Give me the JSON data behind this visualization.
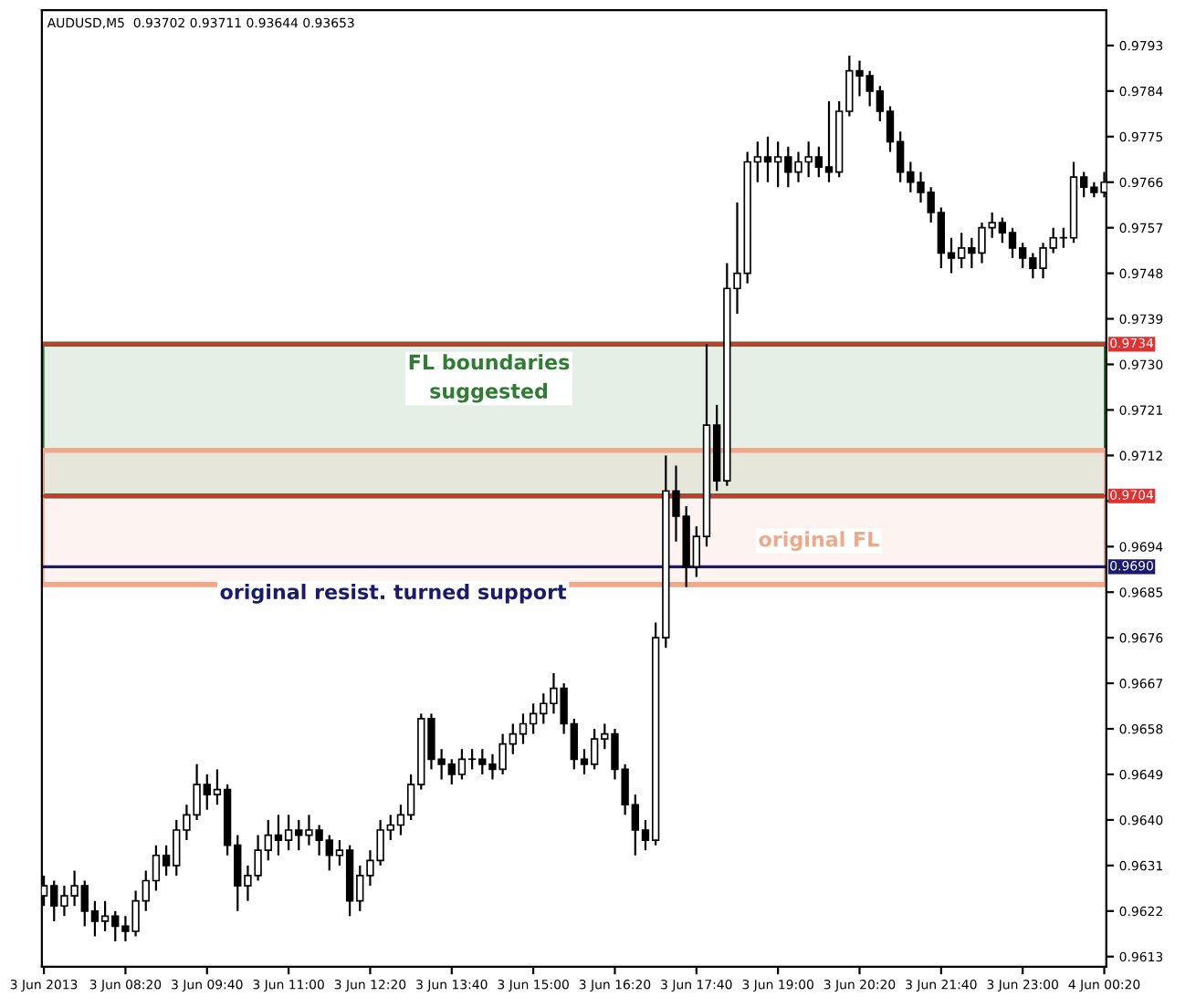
{
  "chart_data": {
    "type": "candlestick",
    "title": "AUDUSD,M5  0.93702 0.93711 0.93644 0.93653",
    "x": [
      "2013-06-03T07:00",
      "2013-06-03T07:10",
      "2013-06-03T07:20",
      "2013-06-03T07:30",
      "2013-06-03T07:40",
      "2013-06-03T07:50",
      "2013-06-03T08:00",
      "2013-06-03T08:10",
      "2013-06-03T08:20",
      "2013-06-03T08:30",
      "2013-06-03T08:40",
      "2013-06-03T08:50",
      "2013-06-03T09:00",
      "2013-06-03T09:10",
      "2013-06-03T09:20",
      "2013-06-03T09:30",
      "2013-06-03T09:40",
      "2013-06-03T09:50",
      "2013-06-03T10:00",
      "2013-06-03T10:10",
      "2013-06-03T10:20",
      "2013-06-03T10:30",
      "2013-06-03T10:40",
      "2013-06-03T10:50",
      "2013-06-03T11:00",
      "2013-06-03T11:10",
      "2013-06-03T11:20",
      "2013-06-03T11:30",
      "2013-06-03T11:40",
      "2013-06-03T11:50",
      "2013-06-03T12:00",
      "2013-06-03T12:10",
      "2013-06-03T12:20",
      "2013-06-03T12:30",
      "2013-06-03T12:40",
      "2013-06-03T12:50",
      "2013-06-03T13:00",
      "2013-06-03T13:10",
      "2013-06-03T13:20",
      "2013-06-03T13:30",
      "2013-06-03T13:40",
      "2013-06-03T13:50",
      "2013-06-03T14:00",
      "2013-06-03T14:10",
      "2013-06-03T14:20",
      "2013-06-03T14:30",
      "2013-06-03T14:40",
      "2013-06-03T14:50",
      "2013-06-03T15:00",
      "2013-06-03T15:10",
      "2013-06-03T15:20",
      "2013-06-03T15:30",
      "2013-06-03T15:40",
      "2013-06-03T15:50",
      "2013-06-03T16:00",
      "2013-06-03T16:10",
      "2013-06-03T16:20",
      "2013-06-03T16:30",
      "2013-06-03T16:40",
      "2013-06-03T16:50",
      "2013-06-03T17:00",
      "2013-06-03T17:10",
      "2013-06-03T17:20",
      "2013-06-03T17:30",
      "2013-06-03T17:40",
      "2013-06-03T17:50",
      "2013-06-03T18:00",
      "2013-06-03T18:10",
      "2013-06-03T18:20",
      "2013-06-03T18:30",
      "2013-06-03T18:40",
      "2013-06-03T18:50",
      "2013-06-03T19:00",
      "2013-06-03T19:10",
      "2013-06-03T19:20",
      "2013-06-03T19:30",
      "2013-06-03T19:40",
      "2013-06-03T19:50",
      "2013-06-03T20:00",
      "2013-06-03T20:10",
      "2013-06-03T20:20",
      "2013-06-03T20:30",
      "2013-06-03T20:40",
      "2013-06-03T20:50",
      "2013-06-03T21:00",
      "2013-06-03T21:10",
      "2013-06-03T21:20",
      "2013-06-03T21:30",
      "2013-06-03T21:40",
      "2013-06-03T21:50",
      "2013-06-03T22:00",
      "2013-06-03T22:10",
      "2013-06-03T22:20",
      "2013-06-03T22:30",
      "2013-06-03T22:40",
      "2013-06-03T22:50",
      "2013-06-03T23:00",
      "2013-06-03T23:10",
      "2013-06-03T23:20",
      "2013-06-03T23:30",
      "2013-06-03T23:40",
      "2013-06-03T23:50",
      "2013-06-04T00:00",
      "2013-06-04T00:10",
      "2013-06-04T00:20"
    ],
    "ohlc": [
      [
        0.9625,
        0.9629,
        0.9623,
        0.9627
      ],
      [
        0.9627,
        0.9628,
        0.962,
        0.9623
      ],
      [
        0.9623,
        0.9627,
        0.9621,
        0.9625
      ],
      [
        0.9625,
        0.963,
        0.9623,
        0.9627
      ],
      [
        0.9627,
        0.9628,
        0.9619,
        0.9622
      ],
      [
        0.9622,
        0.9624,
        0.9617,
        0.962
      ],
      [
        0.962,
        0.9624,
        0.9618,
        0.9621
      ],
      [
        0.9621,
        0.9622,
        0.9616,
        0.9619
      ],
      [
        0.9619,
        0.9621,
        0.9616,
        0.9618
      ],
      [
        0.9618,
        0.9626,
        0.9617,
        0.9624
      ],
      [
        0.9624,
        0.963,
        0.9622,
        0.9628
      ],
      [
        0.9628,
        0.9635,
        0.9626,
        0.9633
      ],
      [
        0.9633,
        0.9635,
        0.9629,
        0.9631
      ],
      [
        0.9631,
        0.964,
        0.9629,
        0.9638
      ],
      [
        0.9638,
        0.9643,
        0.9636,
        0.9641
      ],
      [
        0.9641,
        0.9651,
        0.964,
        0.9647
      ],
      [
        0.9647,
        0.9649,
        0.9642,
        0.9645
      ],
      [
        0.9645,
        0.965,
        0.9643,
        0.9646
      ],
      [
        0.9646,
        0.9647,
        0.9633,
        0.9635
      ],
      [
        0.9635,
        0.9637,
        0.9622,
        0.9627
      ],
      [
        0.9627,
        0.9631,
        0.9624,
        0.9629
      ],
      [
        0.9629,
        0.9637,
        0.9628,
        0.9634
      ],
      [
        0.9634,
        0.964,
        0.9632,
        0.9637
      ],
      [
        0.9637,
        0.9641,
        0.9633,
        0.9636
      ],
      [
        0.9636,
        0.9641,
        0.9634,
        0.9638
      ],
      [
        0.9638,
        0.964,
        0.9634,
        0.9637
      ],
      [
        0.9637,
        0.9641,
        0.9635,
        0.9638
      ],
      [
        0.9638,
        0.9639,
        0.9633,
        0.9636
      ],
      [
        0.9636,
        0.9637,
        0.963,
        0.9633
      ],
      [
        0.9633,
        0.9636,
        0.9631,
        0.9634
      ],
      [
        0.9634,
        0.9635,
        0.9621,
        0.9624
      ],
      [
        0.9624,
        0.9631,
        0.9622,
        0.9629
      ],
      [
        0.9629,
        0.9634,
        0.9627,
        0.9632
      ],
      [
        0.9632,
        0.964,
        0.9631,
        0.9638
      ],
      [
        0.9638,
        0.9641,
        0.9636,
        0.9639
      ],
      [
        0.9639,
        0.9643,
        0.9637,
        0.9641
      ],
      [
        0.9641,
        0.9649,
        0.964,
        0.9647
      ],
      [
        0.9647,
        0.9661,
        0.9646,
        0.966
      ],
      [
        0.966,
        0.9661,
        0.965,
        0.9652
      ],
      [
        0.9652,
        0.9654,
        0.9648,
        0.9651
      ],
      [
        0.9651,
        0.9652,
        0.9647,
        0.9649
      ],
      [
        0.9649,
        0.9654,
        0.9648,
        0.9652
      ],
      [
        0.9652,
        0.9654,
        0.965,
        0.9652
      ],
      [
        0.9652,
        0.9654,
        0.9649,
        0.9651
      ],
      [
        0.9651,
        0.9653,
        0.9648,
        0.965
      ],
      [
        0.965,
        0.9657,
        0.9649,
        0.9655
      ],
      [
        0.9655,
        0.9659,
        0.9653,
        0.9657
      ],
      [
        0.9657,
        0.9661,
        0.9655,
        0.9659
      ],
      [
        0.9659,
        0.9663,
        0.9657,
        0.9661
      ],
      [
        0.9661,
        0.9665,
        0.9659,
        0.9663
      ],
      [
        0.9663,
        0.9669,
        0.9661,
        0.9666
      ],
      [
        0.9666,
        0.9667,
        0.9657,
        0.9659
      ],
      [
        0.9659,
        0.966,
        0.965,
        0.9652
      ],
      [
        0.9652,
        0.9654,
        0.9649,
        0.9651
      ],
      [
        0.9651,
        0.9658,
        0.965,
        0.9656
      ],
      [
        0.9656,
        0.9659,
        0.9654,
        0.9657
      ],
      [
        0.9657,
        0.9658,
        0.9648,
        0.965
      ],
      [
        0.965,
        0.9651,
        0.9641,
        0.9643
      ],
      [
        0.9643,
        0.9645,
        0.9633,
        0.9638
      ],
      [
        0.9638,
        0.964,
        0.9634,
        0.9636
      ],
      [
        0.9636,
        0.9679,
        0.9635,
        0.9676
      ],
      [
        0.9676,
        0.9712,
        0.9674,
        0.9705
      ],
      [
        0.9705,
        0.971,
        0.9695,
        0.97
      ],
      [
        0.97,
        0.9702,
        0.9686,
        0.969
      ],
      [
        0.969,
        0.9698,
        0.9688,
        0.9696
      ],
      [
        0.9696,
        0.9734,
        0.9694,
        0.9718
      ],
      [
        0.9718,
        0.9722,
        0.9705,
        0.9707
      ],
      [
        0.9707,
        0.975,
        0.9706,
        0.9745
      ],
      [
        0.9745,
        0.9762,
        0.974,
        0.9748
      ],
      [
        0.9748,
        0.9772,
        0.9746,
        0.977
      ],
      [
        0.977,
        0.9774,
        0.9766,
        0.9771
      ],
      [
        0.9771,
        0.9775,
        0.9766,
        0.977
      ],
      [
        0.977,
        0.9774,
        0.9765,
        0.9771
      ],
      [
        0.9771,
        0.9773,
        0.9765,
        0.9768
      ],
      [
        0.9768,
        0.9772,
        0.9766,
        0.977
      ],
      [
        0.977,
        0.9774,
        0.9767,
        0.9771
      ],
      [
        0.9771,
        0.9773,
        0.9767,
        0.9769
      ],
      [
        0.9769,
        0.9782,
        0.9766,
        0.9768
      ],
      [
        0.9768,
        0.9782,
        0.9767,
        0.978
      ],
      [
        0.978,
        0.9791,
        0.9779,
        0.9788
      ],
      [
        0.9788,
        0.979,
        0.9783,
        0.9787
      ],
      [
        0.9787,
        0.9788,
        0.9781,
        0.9784
      ],
      [
        0.9784,
        0.9785,
        0.9778,
        0.978
      ],
      [
        0.978,
        0.9781,
        0.9772,
        0.9774
      ],
      [
        0.9774,
        0.9776,
        0.9766,
        0.9768
      ],
      [
        0.9768,
        0.977,
        0.9764,
        0.9766
      ],
      [
        0.9766,
        0.9768,
        0.9762,
        0.9764
      ],
      [
        0.9764,
        0.9765,
        0.9758,
        0.976
      ],
      [
        0.976,
        0.9761,
        0.9749,
        0.9752
      ],
      [
        0.9752,
        0.9755,
        0.9748,
        0.9751
      ],
      [
        0.9751,
        0.9756,
        0.9749,
        0.9753
      ],
      [
        0.9753,
        0.9755,
        0.9749,
        0.9752
      ],
      [
        0.9752,
        0.9758,
        0.975,
        0.9757
      ],
      [
        0.9757,
        0.976,
        0.9755,
        0.9758
      ],
      [
        0.9758,
        0.9759,
        0.9754,
        0.9756
      ],
      [
        0.9756,
        0.9757,
        0.9751,
        0.9753
      ],
      [
        0.9753,
        0.9754,
        0.9749,
        0.9751
      ],
      [
        0.9751,
        0.9752,
        0.9747,
        0.9749
      ],
      [
        0.9749,
        0.9754,
        0.9747,
        0.9753
      ],
      [
        0.9753,
        0.9757,
        0.9752,
        0.9755
      ],
      [
        0.9755,
        0.9757,
        0.9753,
        0.9755
      ],
      [
        0.9755,
        0.977,
        0.9754,
        0.9767
      ],
      [
        0.9767,
        0.9768,
        0.9763,
        0.9765
      ],
      [
        0.9765,
        0.9766,
        0.9763,
        0.9764
      ],
      [
        0.9764,
        0.9768,
        0.9763,
        0.9766
      ]
    ],
    "xlim": [
      "2013-06-03T06:58",
      "2013-06-04T00:22"
    ],
    "xticks": [
      {
        "value": "2013-06-03T07:00",
        "label": "3 Jun 2013"
      },
      {
        "value": "2013-06-03T08:20",
        "label": "3 Jun 08:20"
      },
      {
        "value": "2013-06-03T09:40",
        "label": "3 Jun 09:40"
      },
      {
        "value": "2013-06-03T11:00",
        "label": "3 Jun 11:00"
      },
      {
        "value": "2013-06-03T12:20",
        "label": "3 Jun 12:20"
      },
      {
        "value": "2013-06-03T13:40",
        "label": "3 Jun 13:40"
      },
      {
        "value": "2013-06-03T15:00",
        "label": "3 Jun 15:00"
      },
      {
        "value": "2013-06-03T16:20",
        "label": "3 Jun 16:20"
      },
      {
        "value": "2013-06-03T17:40",
        "label": "3 Jun 17:40"
      },
      {
        "value": "2013-06-03T19:00",
        "label": "3 Jun 19:00"
      },
      {
        "value": "2013-06-03T20:20",
        "label": "3 Jun 20:20"
      },
      {
        "value": "2013-06-03T21:40",
        "label": "3 Jun 21:40"
      },
      {
        "value": "2013-06-03T23:00",
        "label": "3 Jun 23:00"
      },
      {
        "value": "2013-06-04T00:20",
        "label": "4 Jun 00:20"
      }
    ],
    "ylim": [
      0.9611,
      0.98
    ],
    "yticks": [
      0.9613,
      0.9622,
      0.9631,
      {
        "value": 0.964,
        "label": "0.9640"
      },
      0.9649,
      0.9658,
      0.9667,
      0.9676,
      0.9685,
      0.9694,
      {
        "value": 0.9703,
        "label": null
      },
      0.9712,
      0.9721,
      {
        "value": 0.973,
        "label": "0.9730"
      },
      0.9739,
      0.9748,
      0.9757,
      0.9766,
      0.9775,
      0.9784,
      0.9793
    ],
    "ref_lines": [
      {
        "axis": "y",
        "value": 0.9734,
        "label": "0.9734",
        "color": "#e03030"
      },
      {
        "axis": "y",
        "value": 0.9704,
        "label": "0.9704",
        "color": "#e03030"
      },
      {
        "axis": "y",
        "value": 0.969,
        "label": "0.9690",
        "color": "#1a1a6e"
      }
    ],
    "bands": [
      {
        "axis": "y",
        "from": 0.9704,
        "to": 0.9734,
        "color": "#2e7d32"
      },
      {
        "axis": "y",
        "from": 0.96865,
        "to": 0.9713,
        "color": "#f0a888"
      }
    ],
    "annotations": [
      "FL boundaries\nsuggested",
      "original FL",
      "original resist. turned support"
    ],
    "grid": false
  }
}
